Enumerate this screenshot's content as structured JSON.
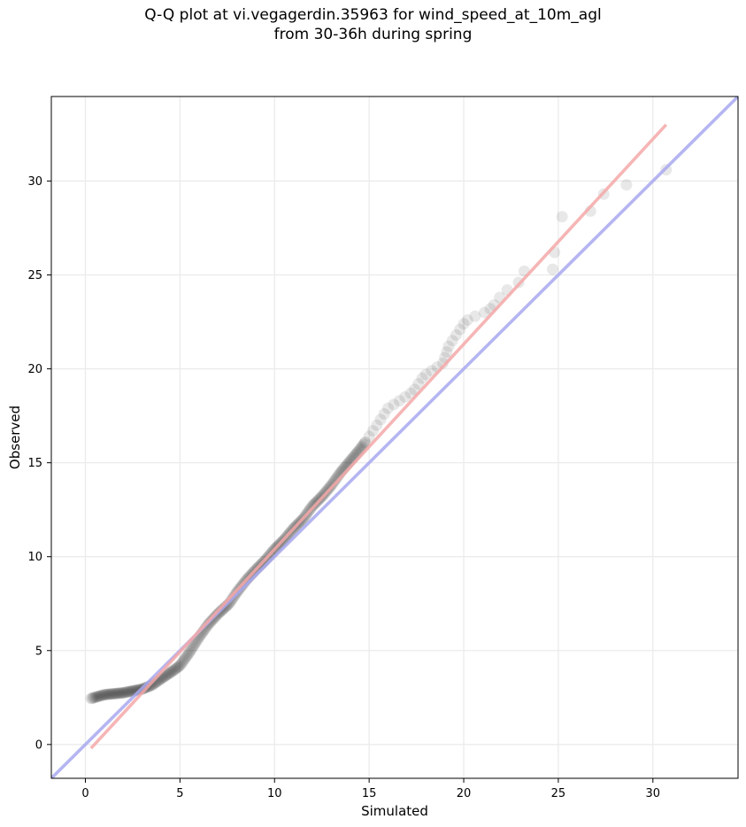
{
  "chart_data": {
    "type": "scatter",
    "title_line1": "Q-Q plot at vi.vegagerdin.35963 for wind_speed_at_10m_agl",
    "title_line2": "from 30-36h during spring",
    "xlabel": "Simulated",
    "ylabel": "Observed",
    "xlim": [
      -1.8,
      34.5
    ],
    "ylim": [
      -1.8,
      34.5
    ],
    "xticks": [
      0,
      5,
      10,
      15,
      20,
      25,
      30
    ],
    "yticks": [
      0,
      5,
      10,
      15,
      20,
      25,
      30
    ],
    "grid": true,
    "reference_lines": [
      {
        "name": "",
        "color": "#a8a8f0",
        "points": [
          [
            -1.8,
            -1.8
          ],
          [
            34.5,
            34.5
          ]
        ]
      },
      {
        "name": "",
        "color": "#f4a8a8",
        "points": [
          [
            0.3,
            -0.2
          ],
          [
            30.7,
            33
          ]
        ]
      }
    ],
    "point_color": "#000000",
    "sparse_points": [
      [
        14.8,
        16.1
      ],
      [
        15.0,
        16.4
      ],
      [
        15.2,
        16.7
      ],
      [
        15.4,
        17.0
      ],
      [
        15.6,
        17.3
      ],
      [
        15.8,
        17.6
      ],
      [
        16.0,
        17.9
      ],
      [
        16.3,
        18.1
      ],
      [
        16.6,
        18.3
      ],
      [
        16.9,
        18.5
      ],
      [
        17.2,
        18.7
      ],
      [
        17.4,
        18.9
      ],
      [
        17.6,
        19.2
      ],
      [
        17.8,
        19.5
      ],
      [
        18.0,
        19.7
      ],
      [
        18.3,
        19.9
      ],
      [
        18.6,
        20.1
      ],
      [
        18.9,
        20.3
      ],
      [
        19.0,
        20.6
      ],
      [
        19.1,
        20.9
      ],
      [
        19.2,
        21.2
      ],
      [
        19.4,
        21.5
      ],
      [
        19.6,
        21.8
      ],
      [
        19.8,
        22.1
      ],
      [
        20.0,
        22.4
      ],
      [
        20.2,
        22.6
      ],
      [
        20.6,
        22.8
      ],
      [
        21.1,
        23.0
      ],
      [
        21.4,
        23.2
      ],
      [
        21.6,
        23.4
      ],
      [
        21.9,
        23.8
      ],
      [
        22.3,
        24.2
      ],
      [
        22.9,
        24.6
      ],
      [
        23.2,
        25.2
      ],
      [
        24.7,
        25.3
      ],
      [
        24.8,
        26.2
      ],
      [
        25.2,
        28.1
      ],
      [
        26.7,
        28.4
      ],
      [
        27.4,
        29.3
      ],
      [
        28.6,
        29.8
      ],
      [
        30.7,
        30.6
      ]
    ]
  }
}
